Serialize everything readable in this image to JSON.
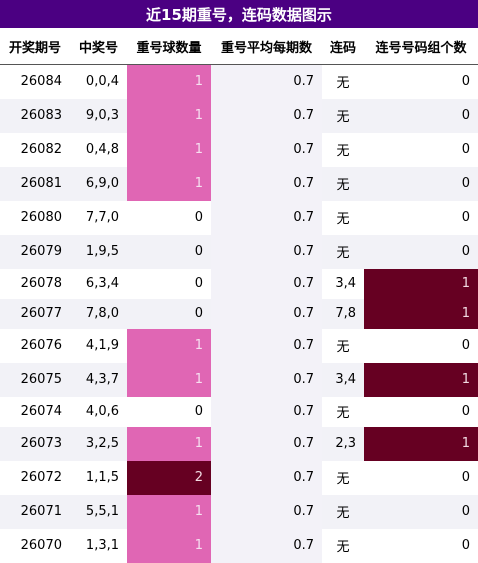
{
  "title": "近15期重号，连码数据图示",
  "headers": [
    "开奖期号",
    "中奖号",
    "重号球数量",
    "重号平均每期数",
    "连码",
    "连号号码组个数"
  ],
  "rows": [
    {
      "issue": "26084",
      "numbers": "0,0,4",
      "repeat": "1",
      "avg": "0.7",
      "consec": "无",
      "groups": "0"
    },
    {
      "issue": "26083",
      "numbers": "9,0,3",
      "repeat": "1",
      "avg": "0.7",
      "consec": "无",
      "groups": "0"
    },
    {
      "issue": "26082",
      "numbers": "0,4,8",
      "repeat": "1",
      "avg": "0.7",
      "consec": "无",
      "groups": "0"
    },
    {
      "issue": "26081",
      "numbers": "6,9,0",
      "repeat": "1",
      "avg": "0.7",
      "consec": "无",
      "groups": "0"
    },
    {
      "issue": "26080",
      "numbers": "7,7,0",
      "repeat": "0",
      "avg": "0.7",
      "consec": "无",
      "groups": "0"
    },
    {
      "issue": "26079",
      "numbers": "1,9,5",
      "repeat": "0",
      "avg": "0.7",
      "consec": "无",
      "groups": "0"
    },
    {
      "issue": "26078",
      "numbers": "6,3,4",
      "repeat": "0",
      "avg": "0.7",
      "consec": "3,4",
      "groups": "1"
    },
    {
      "issue": "26077",
      "numbers": "7,8,0",
      "repeat": "0",
      "avg": "0.7",
      "consec": "7,8",
      "groups": "1"
    },
    {
      "issue": "26076",
      "numbers": "4,1,9",
      "repeat": "1",
      "avg": "0.7",
      "consec": "无",
      "groups": "0"
    },
    {
      "issue": "26075",
      "numbers": "4,3,7",
      "repeat": "1",
      "avg": "0.7",
      "consec": "3,4",
      "groups": "1"
    },
    {
      "issue": "26074",
      "numbers": "4,0,6",
      "repeat": "0",
      "avg": "0.7",
      "consec": "无",
      "groups": "0"
    },
    {
      "issue": "26073",
      "numbers": "3,2,5",
      "repeat": "1",
      "avg": "0.7",
      "consec": "2,3",
      "groups": "1"
    },
    {
      "issue": "26072",
      "numbers": "1,1,5",
      "repeat": "2",
      "avg": "0.7",
      "consec": "无",
      "groups": "0"
    },
    {
      "issue": "26071",
      "numbers": "5,5,1",
      "repeat": "1",
      "avg": "0.7",
      "consec": "无",
      "groups": "0"
    },
    {
      "issue": "26070",
      "numbers": "1,3,1",
      "repeat": "1",
      "avg": "0.7",
      "consec": "无",
      "groups": "0"
    }
  ],
  "colors": {
    "title_bg": "#4b0082",
    "repeat_1": "#e066b4",
    "repeat_2": "#660022",
    "groups_1": "#660022"
  }
}
